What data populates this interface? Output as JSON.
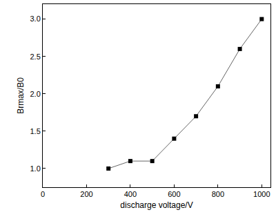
{
  "chart_data": {
    "type": "line",
    "x_label": "discharge voltage/V",
    "y_label": "Brmax/B0",
    "x": [
      300,
      400,
      500,
      600,
      700,
      800,
      900,
      1000
    ],
    "values": [
      1.0,
      1.1,
      1.1,
      1.4,
      1.7,
      2.1,
      2.6,
      3.0
    ],
    "color": "#000000",
    "marker": "square",
    "xlim": [
      0,
      1040
    ],
    "xticks": [
      0,
      200,
      400,
      600,
      800,
      1000
    ],
    "ylim": [
      0.75,
      3.2
    ],
    "yticks": [
      {
        "value": 1.0,
        "label": "1.0"
      },
      {
        "value": 1.5,
        "label": "1.5"
      },
      {
        "value": 2.0,
        "label": "2.0"
      },
      {
        "value": 2.5,
        "label": "2.5"
      },
      {
        "value": 3.0,
        "label": "3.0"
      }
    ],
    "grid": false
  }
}
